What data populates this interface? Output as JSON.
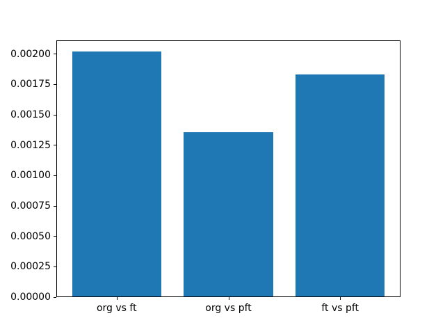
{
  "chart_data": {
    "type": "bar",
    "title": "",
    "xlabel": "",
    "ylabel": "",
    "categories": [
      "org vs ft",
      "org vs pft",
      "ft vs pft"
    ],
    "values": [
      0.00202,
      0.00136,
      0.00183
    ],
    "ylim": [
      0,
      0.002113
    ],
    "yticks": [
      0.0,
      0.00025,
      0.0005,
      0.00075,
      0.001,
      0.00125,
      0.0015,
      0.00175,
      0.002
    ],
    "ytick_labels": [
      "0.00000",
      "0.00025",
      "0.00050",
      "0.00075",
      "0.00100",
      "0.00125",
      "0.00150",
      "0.00175",
      "0.00200"
    ],
    "bar_width_fraction": 0.8,
    "grid": false,
    "legend": "none",
    "bar_color": "#1f77b4",
    "spine_color": "#000000",
    "text_color": "#000000",
    "background_color": "#ffffff"
  }
}
